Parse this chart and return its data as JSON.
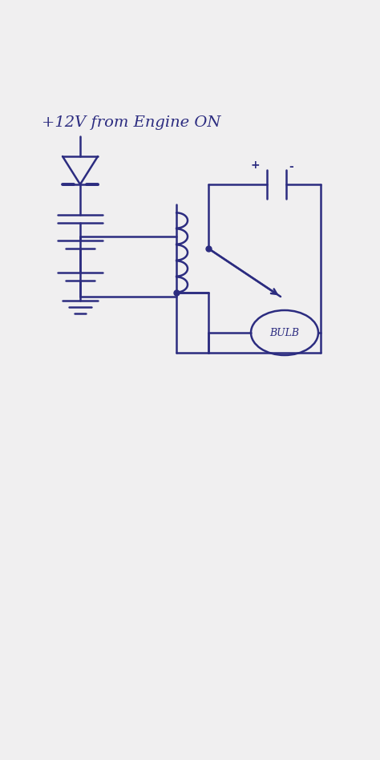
{
  "bg_color": "#f0eff0",
  "line_color": "#2c2c80",
  "title_text": "+12V from Engine ON",
  "lw": 1.8
}
